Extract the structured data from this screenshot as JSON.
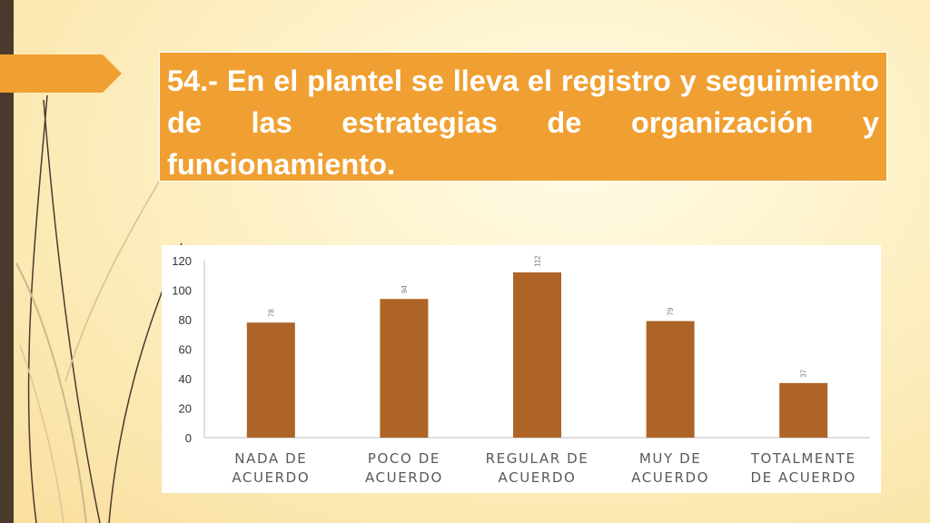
{
  "title": "54.- En el plantel se lleva el registro y seguimiento de las estrategias de organización y funcionamiento.",
  "colors": {
    "accent": "#f0a032",
    "bar": "#ad6426",
    "side_bar": "#4a3a2c"
  },
  "chart_data": {
    "type": "bar",
    "categories": [
      [
        "NADA DE",
        "ACUERDO"
      ],
      [
        "POCO DE",
        "ACUERDO"
      ],
      [
        "REGULAR DE",
        "ACUERDO"
      ],
      [
        "MUY DE",
        "ACUERDO"
      ],
      [
        "TOTALMENTE",
        "DE ACUERDO"
      ]
    ],
    "values": [
      78,
      94,
      112,
      79,
      37
    ],
    "data_labels": [
      "78",
      "94",
      "112",
      "79",
      "37"
    ],
    "ylim": [
      0,
      120
    ],
    "yticks": [
      0,
      20,
      40,
      60,
      80,
      100,
      120
    ],
    "title": "",
    "xlabel": "",
    "ylabel": "",
    "grid": false,
    "legend": "none"
  }
}
